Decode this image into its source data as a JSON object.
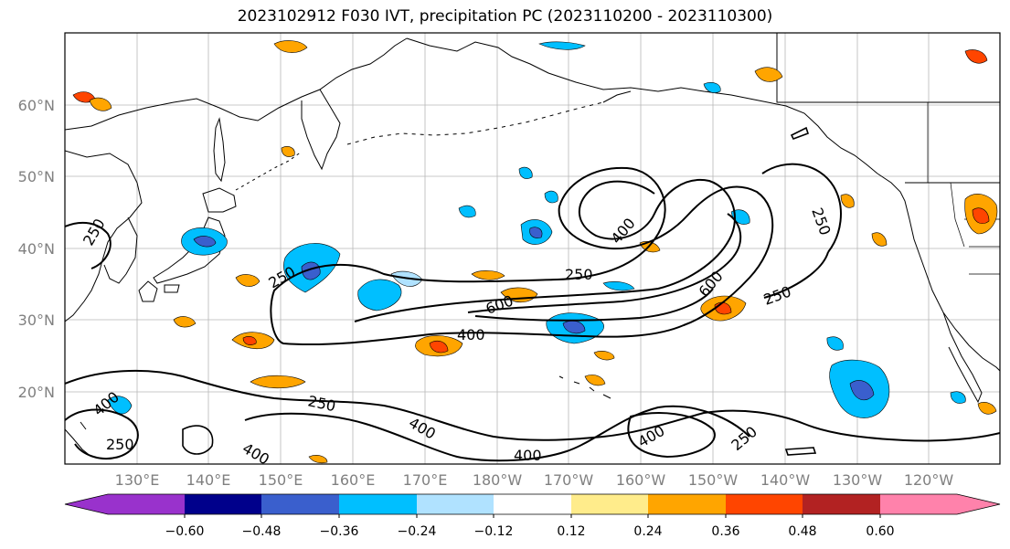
{
  "title": "2023102912 F030 IVT, precipitation PC (2023110200 - 2023110300)",
  "map": {
    "lat_labels": [
      "60°N",
      "50°N",
      "40°N",
      "30°N",
      "20°N"
    ],
    "lon_labels": [
      "130°E",
      "140°E",
      "150°E",
      "160°E",
      "170°E",
      "180°W",
      "170°W",
      "160°W",
      "150°W",
      "140°W",
      "130°W",
      "120°W"
    ],
    "contour_labels": [
      {
        "text": "250"
      },
      {
        "text": "250"
      },
      {
        "text": "250"
      },
      {
        "text": "250"
      },
      {
        "text": "250"
      },
      {
        "text": "250"
      },
      {
        "text": "250"
      },
      {
        "text": "250"
      },
      {
        "text": "400"
      },
      {
        "text": "400"
      },
      {
        "text": "400"
      },
      {
        "text": "400"
      },
      {
        "text": "400"
      },
      {
        "text": "400"
      },
      {
        "text": "400"
      },
      {
        "text": "600"
      },
      {
        "text": "600"
      }
    ]
  },
  "colorbar": {
    "ticks": [
      "−0.60",
      "−0.48",
      "−0.36",
      "−0.24",
      "−0.12",
      "0.12",
      "0.24",
      "0.36",
      "0.48",
      "0.60"
    ],
    "colors": [
      "#9932cc",
      "#00008b",
      "#3a5fcd",
      "#00bfff",
      "#b0e2ff",
      "#ffffff",
      "#ffec8b",
      "#ffa500",
      "#ff4500",
      "#b22222",
      "#ff82ab"
    ]
  }
}
